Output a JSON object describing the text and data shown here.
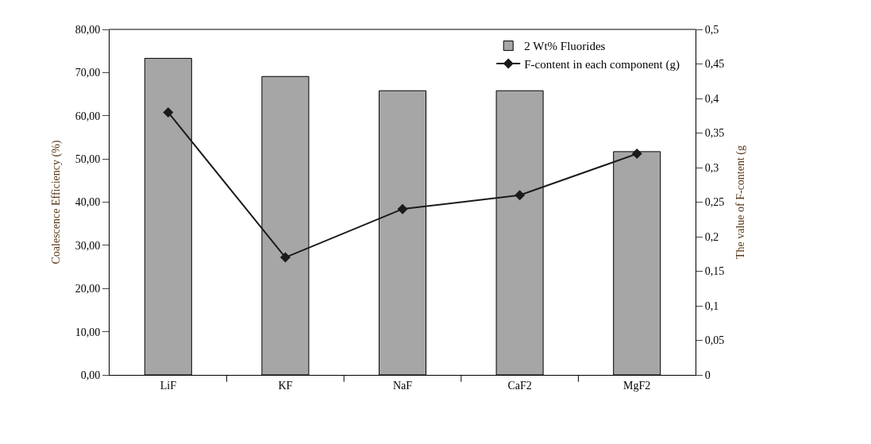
{
  "chart_data": {
    "type": "bar",
    "categories": [
      "LiF",
      "KF",
      "NaF",
      "CaF2",
      "MgF2"
    ],
    "ylabel": "Coalescence Efficiency (%)",
    "y2label": "The value of F-content (g",
    "ylim": [
      0,
      80
    ],
    "yticks": [
      {
        "value": 0,
        "label": "0,00"
      },
      {
        "value": 10,
        "label": "10,00"
      },
      {
        "value": 20,
        "label": "20,00"
      },
      {
        "value": 30,
        "label": "30,00"
      },
      {
        "value": 40,
        "label": "40,00"
      },
      {
        "value": 50,
        "label": "50,00"
      },
      {
        "value": 60,
        "label": "60,00"
      },
      {
        "value": 70,
        "label": "70,00"
      },
      {
        "value": 80,
        "label": "80,00"
      }
    ],
    "y2lim": [
      0,
      0.5
    ],
    "y2ticks": [
      0,
      {
        "value": 0.05,
        "label": "0,05"
      },
      {
        "value": 0.1,
        "label": "0,1"
      },
      {
        "value": 0.15,
        "label": "0,15"
      },
      {
        "value": 0.2,
        "label": "0,2"
      },
      {
        "value": 0.25,
        "label": "0,25"
      },
      {
        "value": 0.3,
        "label": "0,3"
      },
      {
        "value": 0.35,
        "label": "0,35"
      },
      {
        "value": 0.4,
        "label": "0,4"
      },
      {
        "value": 0.45,
        "label": "0,45"
      },
      {
        "value": 0.5,
        "label": "0,5"
      }
    ],
    "series": [
      {
        "name": "2 Wt% Fluorides",
        "color": "#a6a6a6",
        "values": [
          73.3,
          69.1,
          65.8,
          65.8,
          51.7
        ]
      },
      {
        "name": "F-content in each component (g)",
        "type": "line",
        "axis": "y2",
        "color": "#1a1a1a",
        "marker": "diamond",
        "values": [
          0.38,
          0.17,
          0.24,
          0.26,
          0.32
        ]
      }
    ],
    "legend": "top right"
  }
}
